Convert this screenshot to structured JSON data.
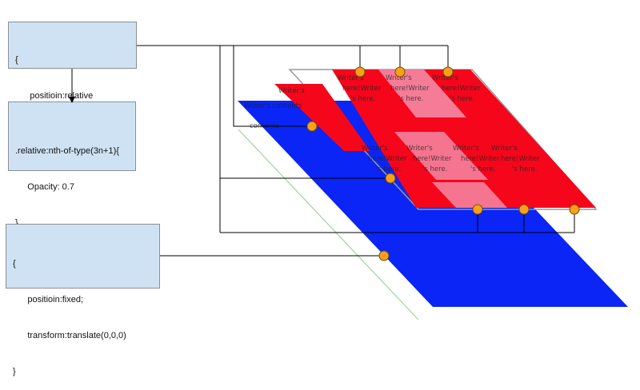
{
  "code_boxes": {
    "relative": {
      "lines": [
        "{",
        "      positioin:relative",
        "}"
      ]
    },
    "nth_of_type": {
      "lines": [
        ".relative:nth-of-type(3n+1){",
        "     Opacity: 0.7",
        "}"
      ]
    },
    "fixed": {
      "lines": [
        "{",
        "      positioin:fixed;",
        "      transform:translate(0,0,0)",
        "}"
      ]
    }
  },
  "tile_text": {
    "line_a": "Writer's",
    "line_b": "here!Writer",
    "line_c": "'s here.",
    "partial_a": "Writer's contents",
    "partial_b": "contents"
  },
  "colors": {
    "box_fill": "#cfe2f3",
    "blue_layer": "#0a25f5",
    "red_layer": "#f5061b",
    "pink_tile": "#f48aa5",
    "marker_fill": "#f7a01a",
    "marker_stroke": "#7a4b00",
    "green_edge": "#9fd39f",
    "connector": "#000000"
  }
}
